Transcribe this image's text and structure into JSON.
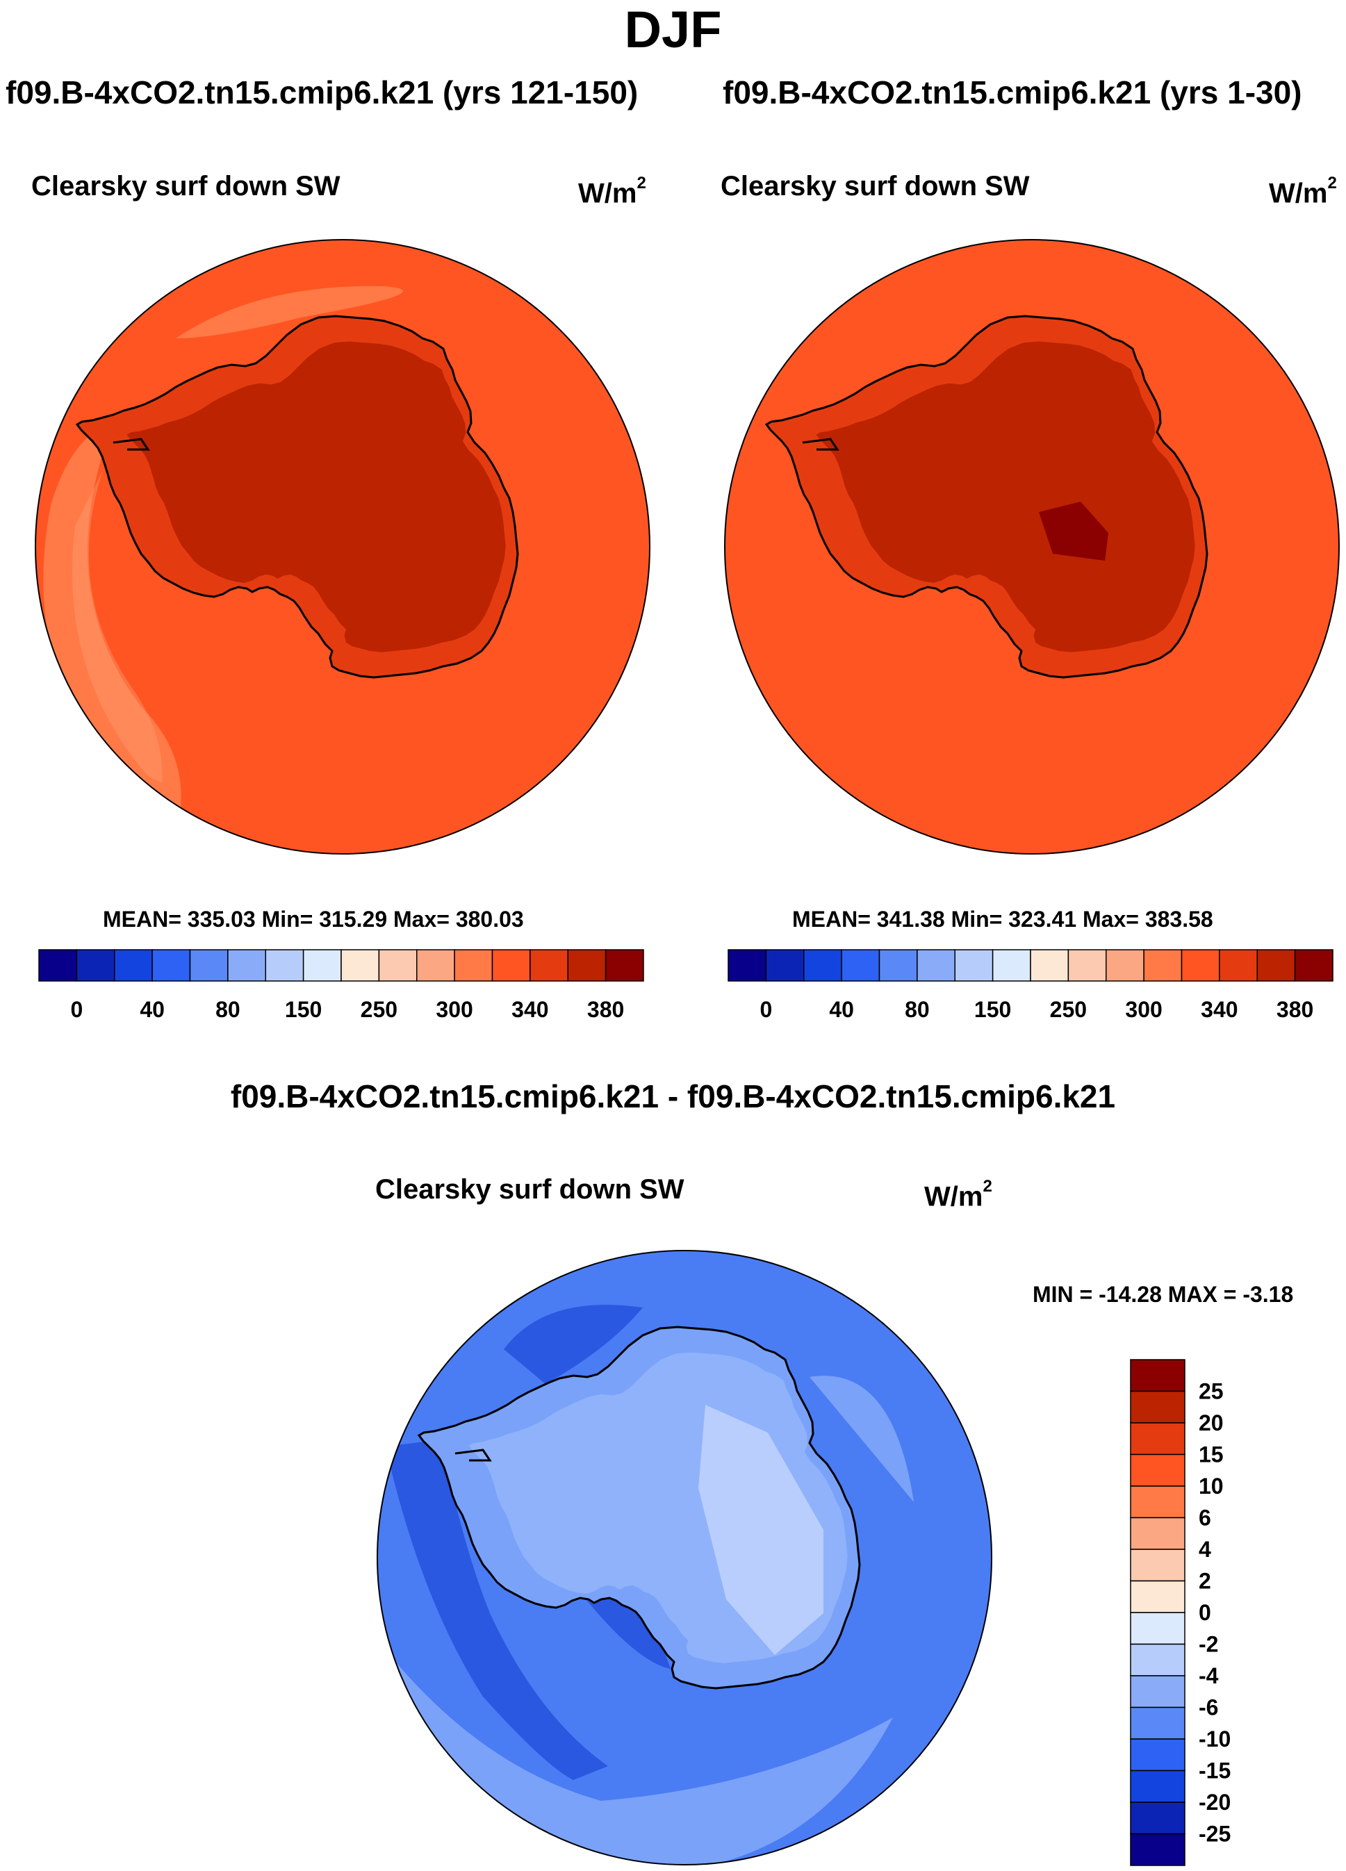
{
  "figure": {
    "season": "DJF",
    "difference_title": "f09.B-4xCO2.tn15.cmip6.k21 - f09.B-4xCO2.tn15.cmip6.k21"
  },
  "panels": [
    {
      "run": "f09.B-4xCO2.tn15.cmip6.k21 (yrs 121-150)",
      "variable": "Clearsky surf down SW",
      "units": "W/m",
      "units_exp": "2",
      "stats": "MEAN= 335.03  Min= 315.29  Max= 380.03",
      "colors": {
        "ocean": "#ff5522",
        "shelf": "#e43c10",
        "coast_band": "#ff7a46",
        "coast_band_light": "#ffa57d",
        "interior": "#bc2300",
        "max": "#8b0000"
      }
    },
    {
      "run": "f09.B-4xCO2.tn15.cmip6.k21 (yrs 1-30)",
      "variable": "Clearsky surf down SW",
      "units": "W/m",
      "units_exp": "2",
      "stats": "MEAN= 341.38  Min= 323.41  Max= 383.58",
      "colors": {
        "ocean": "#ff5522",
        "shelf": "#e43c10",
        "coast_band": "#ff5522",
        "coast_band_light": "#ff5522",
        "interior": "#bc2300",
        "max": "#8b0000"
      }
    },
    {
      "variable": "Clearsky surf down SW",
      "units": "W/m",
      "units_exp": "2",
      "stats": "MIN = -14.28 MAX =  -3.18",
      "colors": {
        "ocean": "#4a7cf4",
        "shelf": "#7aa2f8",
        "coast_band": "#2a58e0",
        "coast_band_light": "#7aa2f8",
        "interior": "#8fb2fa",
        "max": "#b9cefc"
      }
    }
  ],
  "colorbar_abs": {
    "colors": [
      "#08008a",
      "#0c24b6",
      "#1444e0",
      "#2e62f4",
      "#5a88f6",
      "#8aacf8",
      "#b6cdfb",
      "#dceafd",
      "#fde8d6",
      "#fccab0",
      "#fca784",
      "#ff7a46",
      "#ff5522",
      "#e43c10",
      "#bc2300",
      "#8b0000"
    ],
    "labels": [
      "0",
      "40",
      "80",
      "150",
      "250",
      "300",
      "340",
      "380"
    ]
  },
  "colorbar_diff": {
    "colors": [
      "#8b0000",
      "#bc2300",
      "#e43c10",
      "#ff5522",
      "#ff7a46",
      "#fca784",
      "#fccab0",
      "#fde8d6",
      "#dceafd",
      "#b6cdfb",
      "#8aacf8",
      "#5a88f6",
      "#2e62f4",
      "#1444e0",
      "#0c24b6",
      "#08008a"
    ],
    "labels": [
      "25",
      "20",
      "15",
      "10",
      "6",
      "4",
      "2",
      "0",
      "-2",
      "-4",
      "-6",
      "-10",
      "-15",
      "-20",
      "-25"
    ]
  }
}
